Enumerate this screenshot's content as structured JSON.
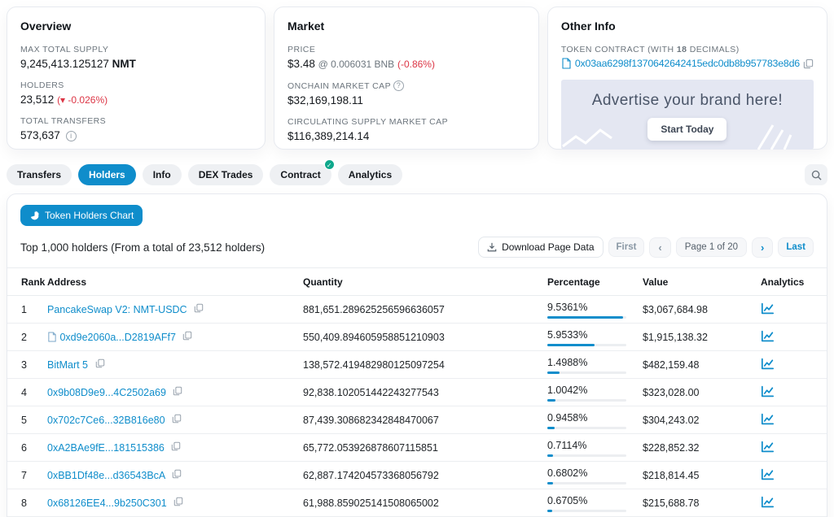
{
  "colors": {
    "accent": "#0f8dcb",
    "negative": "#dc3545",
    "verified_badge": "#0fa88c",
    "ad_background": "#e4e7f2"
  },
  "overview": {
    "title": "Overview",
    "supply_label": "MAX TOTAL SUPPLY",
    "supply_value": "9,245,413.125127",
    "supply_unit": "NMT",
    "holders_label": "HOLDERS",
    "holders_value": "23,512",
    "holders_change": "(▾ -0.026%)",
    "transfers_label": "TOTAL TRANSFERS",
    "transfers_value": "573,637"
  },
  "market": {
    "title": "Market",
    "price_label": "PRICE",
    "price_value": "$3.48",
    "price_sub": "@ 0.006031 BNB",
    "price_change": "(-0.86%)",
    "onchain_label": "ONCHAIN MARKET CAP",
    "onchain_value": "$32,169,198.11",
    "circulating_label": "CIRCULATING SUPPLY MARKET CAP",
    "circulating_value": "$116,389,214.14"
  },
  "other_info": {
    "title": "Other Info",
    "contract_label_pre": "TOKEN CONTRACT (WITH ",
    "contract_decimals": "18",
    "contract_label_post": " DECIMALS)",
    "contract_address": "0x03aa6298f1370642642415edc0db8b957783e8d6",
    "ad_headline": "Advertise your brand here!",
    "ad_cta": "Start Today"
  },
  "tabs": [
    {
      "label": "Transfers",
      "active": false,
      "badge": false
    },
    {
      "label": "Holders",
      "active": true,
      "badge": false
    },
    {
      "label": "Info",
      "active": false,
      "badge": false
    },
    {
      "label": "DEX Trades",
      "active": false,
      "badge": false
    },
    {
      "label": "Contract",
      "active": false,
      "badge": true
    },
    {
      "label": "Analytics",
      "active": false,
      "badge": false
    }
  ],
  "holders": {
    "chart_button": "Token Holders Chart",
    "summary": "Top 1,000 holders (From a total of 23,512 holders)",
    "download_button": "Download Page Data",
    "pagination": {
      "first": "First",
      "prev": "‹",
      "page": "Page 1 of 20",
      "next": "›",
      "last": "Last"
    },
    "table": {
      "headers": [
        "Rank",
        "Address",
        "Quantity",
        "Percentage",
        "Value",
        "Analytics"
      ],
      "rows": [
        {
          "rank": "1",
          "address": "PancakeSwap V2: NMT-USDC",
          "contract_icon": false,
          "quantity": "881,651.289625256596636057",
          "percentage": "9.5361%",
          "bar_pct": 95.4,
          "value": "$3,067,684.98"
        },
        {
          "rank": "2",
          "address": "0xd9e2060a...D2819AFf7",
          "contract_icon": true,
          "quantity": "550,409.894605958851210903",
          "percentage": "5.9533%",
          "bar_pct": 59.5,
          "value": "$1,915,138.32"
        },
        {
          "rank": "3",
          "address": "BitMart 5",
          "contract_icon": false,
          "quantity": "138,572.419482980125097254",
          "percentage": "1.4988%",
          "bar_pct": 15.0,
          "value": "$482,159.48"
        },
        {
          "rank": "4",
          "address": "0x9b08D9e9...4C2502a69",
          "contract_icon": false,
          "quantity": "92,838.102051442243277543",
          "percentage": "1.0042%",
          "bar_pct": 10.0,
          "value": "$323,028.00"
        },
        {
          "rank": "5",
          "address": "0x702c7Ce6...32B816e80",
          "contract_icon": false,
          "quantity": "87,439.308682342848470067",
          "percentage": "0.9458%",
          "bar_pct": 9.5,
          "value": "$304,243.02"
        },
        {
          "rank": "6",
          "address": "0xA2BAe9fE...181515386",
          "contract_icon": false,
          "quantity": "65,772.053926878607115851",
          "percentage": "0.7114%",
          "bar_pct": 7.1,
          "value": "$228,852.32"
        },
        {
          "rank": "7",
          "address": "0xBB1Df48e...d36543BcA",
          "contract_icon": false,
          "quantity": "62,887.174204573368056792",
          "percentage": "0.6802%",
          "bar_pct": 6.8,
          "value": "$218,814.45"
        },
        {
          "rank": "8",
          "address": "0x68126EE4...9b250C301",
          "contract_icon": false,
          "quantity": "61,988.859025141508065002",
          "percentage": "0.6705%",
          "bar_pct": 6.7,
          "value": "$215,688.78"
        }
      ]
    }
  }
}
